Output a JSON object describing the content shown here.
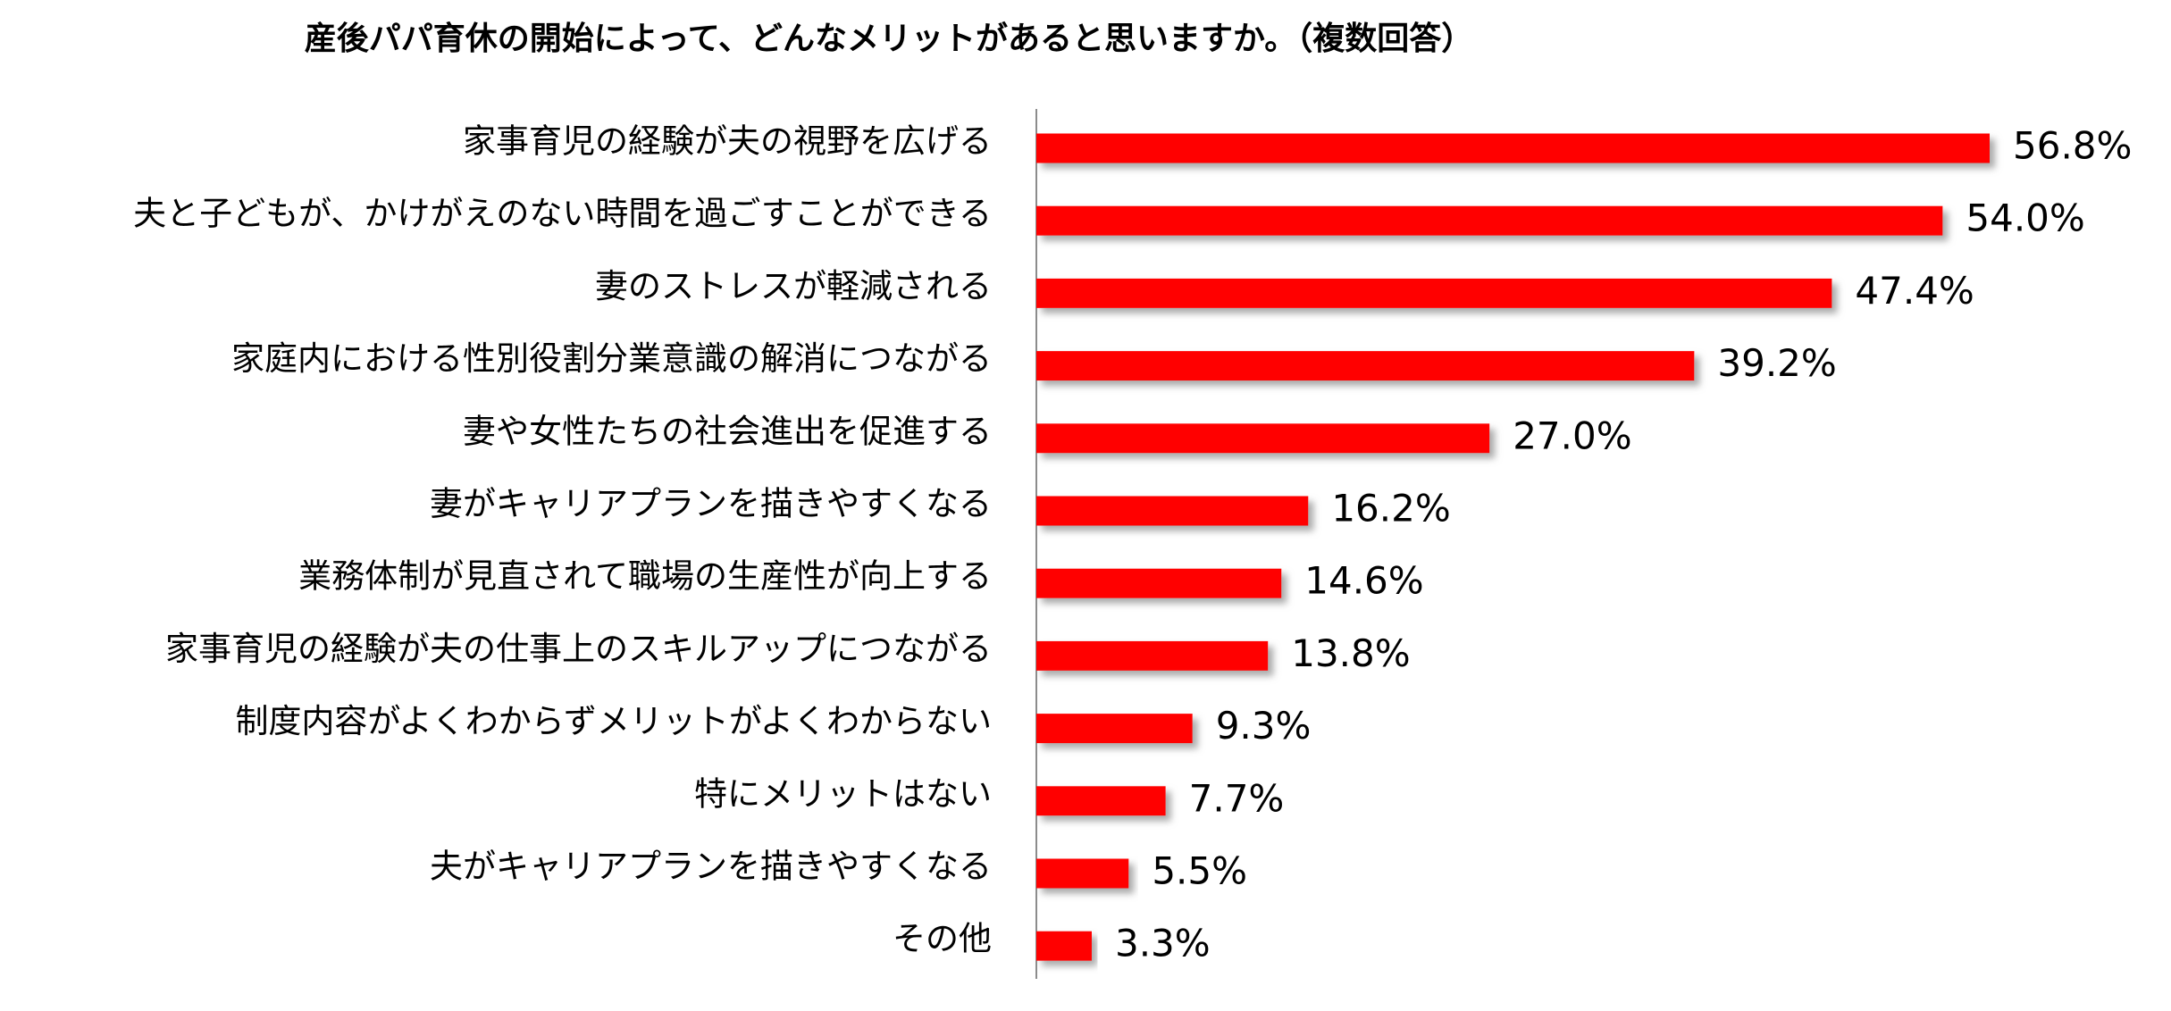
{
  "chart_data": {
    "type": "bar",
    "orientation": "horizontal",
    "title": "産後パパ育休の開始によって、どんなメリットがあると思いますか。（複数回答）",
    "categories": [
      "家事育児の経験が夫の視野を広げる",
      "夫と子どもが、かけがえのない時間を過ごすことができる",
      "妻のストレスが軽減される",
      "家庭内における性別役割分業意識の解消につながる",
      "妻や女性たちの社会進出を促進する",
      "妻がキャリアプランを描きやすくなる",
      "業務体制が見直されて職場の生産性が向上する",
      "家事育児の経験が夫の仕事上のスキルアップにつながる",
      "制度内容がよくわからずメリットがよくわからない",
      "特にメリットはない",
      "夫がキャリアプランを描きやすくなる",
      "その他"
    ],
    "values": [
      56.8,
      54.0,
      47.4,
      39.2,
      27.0,
      16.2,
      14.6,
      13.8,
      9.3,
      7.7,
      5.5,
      3.3
    ],
    "value_labels": [
      "56.8%",
      "54.0%",
      "47.4%",
      "39.2%",
      "27.0%",
      "16.2%",
      "14.6%",
      "13.8%",
      "9.3%",
      "7.7%",
      "5.5%",
      "3.3%"
    ],
    "unit": "%",
    "xlabel": "",
    "ylabel": "",
    "xlim": [
      0,
      60
    ],
    "grid": false,
    "legend": "none",
    "bar_color": "#ff0000",
    "bar_shadow_color": "#9a9a9a",
    "axis_color": "#8c8c8c"
  }
}
